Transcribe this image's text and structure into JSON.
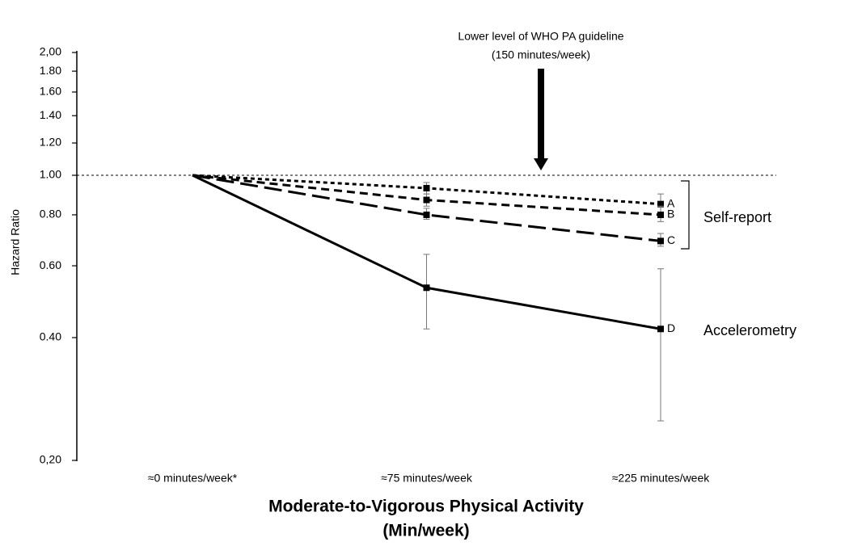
{
  "chart_data": {
    "type": "line",
    "y_label": "Hazard Ratio",
    "x_label": [
      "Moderate-to-Vigorous Physical Activity",
      "(Min/week)"
    ],
    "annotation": [
      "Lower level of WHO PA guideline",
      "(150 minutes/week)"
    ],
    "group_labels": [
      "Self-report",
      "Accelerometry"
    ],
    "categories": [
      "≈0 minutes/week*",
      "≈75 minutes/week",
      "≈225 minutes/week"
    ],
    "log_scale": true,
    "reference_line": 1,
    "ylim": [
      0.2,
      2
    ],
    "yticks": [
      {
        "value": 0.2,
        "label": "0,20"
      },
      {
        "value": 0.4,
        "label": "0.40"
      },
      {
        "value": 0.6,
        "label": "0.60"
      },
      {
        "value": 0.8,
        "label": "0.80"
      },
      {
        "value": 1,
        "label": "1.00"
      },
      {
        "value": 1.2,
        "label": "1.20"
      },
      {
        "value": 1.4,
        "label": "1.40"
      },
      {
        "value": 1.6,
        "label": "1.60"
      },
      {
        "value": 1.8,
        "label": "1.80"
      },
      {
        "value": 2,
        "label": "2,00"
      }
    ],
    "series": [
      {
        "name": "A",
        "color": "#000000",
        "line_style": "dotted",
        "values": [
          1,
          0.93,
          0.85
        ],
        "error_low": [
          null,
          0.9,
          0.81
        ],
        "error_high": [
          null,
          0.96,
          0.9
        ]
      },
      {
        "name": "B",
        "color": "#000000",
        "line_style": "dashed",
        "values": [
          1,
          0.87,
          0.8
        ],
        "error_low": [
          null,
          0.84,
          0.77
        ],
        "error_high": [
          null,
          0.9,
          0.84
        ]
      },
      {
        "name": "C",
        "color": "#000000",
        "line_style": "longdash",
        "values": [
          1,
          0.8,
          0.69
        ],
        "error_low": [
          null,
          0.78,
          0.67
        ],
        "error_high": [
          null,
          0.83,
          0.72
        ]
      },
      {
        "name": "D",
        "color": "#000000",
        "line_style": "solid",
        "values": [
          1,
          0.53,
          0.42
        ],
        "error_low": [
          null,
          0.42,
          0.25
        ],
        "error_high": [
          null,
          0.64,
          0.59
        ]
      }
    ]
  }
}
